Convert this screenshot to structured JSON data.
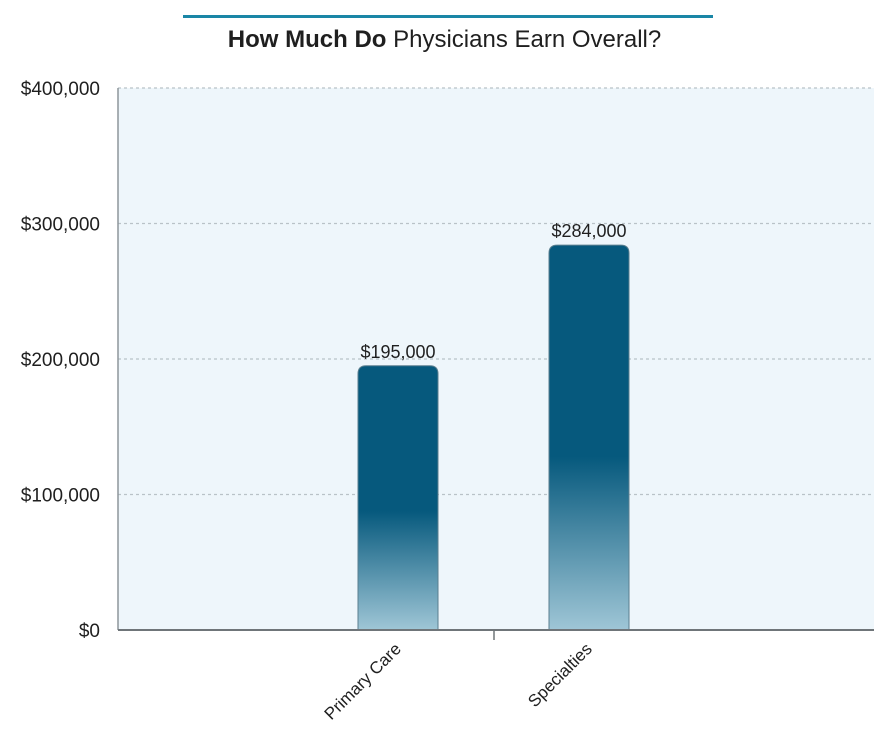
{
  "chart_data": {
    "type": "bar",
    "title_bold": "How Much Do",
    "title_rest": " Physicians Earn Overall?",
    "categories": [
      "Primary Care",
      "Specialties"
    ],
    "values": [
      195000,
      284000
    ],
    "value_labels": [
      "$195,000",
      "$284,000"
    ],
    "ylim": [
      0,
      400000
    ],
    "yticks": [
      0,
      100000,
      200000,
      300000,
      400000
    ],
    "ytick_labels": [
      "$0",
      "$100,000",
      "$200,000",
      "$300,000",
      "$400,000"
    ],
    "grid": true,
    "bar_color": "#06597d",
    "bar_fade_color": "#9fc6d6",
    "plot_background": "#eef6fb",
    "accent": "#1a86a6"
  }
}
